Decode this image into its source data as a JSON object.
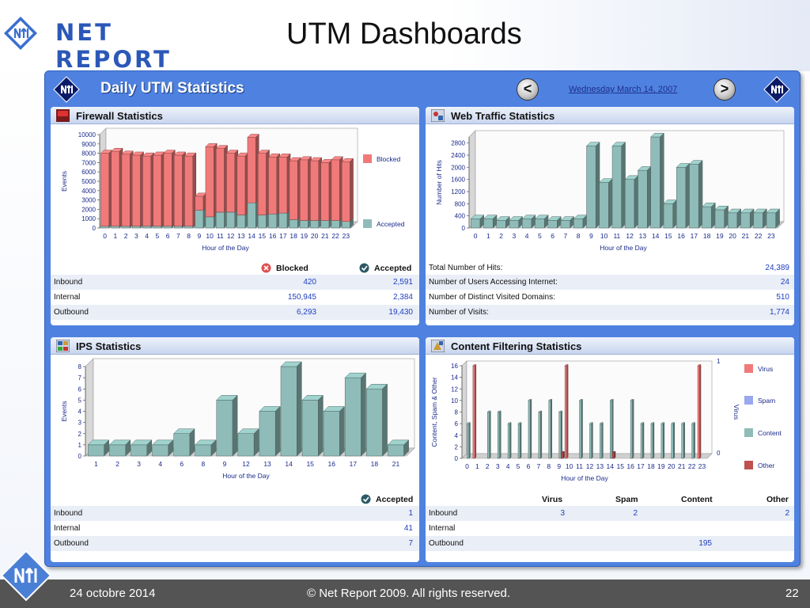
{
  "header": {
    "logo_text": "NET REPORT",
    "title": "UTM Dashboards"
  },
  "dashboard": {
    "title": "Daily UTM Statistics",
    "date": "Wednesday March 14, 2007",
    "prev_label": "<",
    "next_label": ">"
  },
  "firewall": {
    "title": "Firewall Statistics",
    "col_blocked": "Blocked",
    "col_accepted": "Accepted",
    "rows": [
      {
        "label": "Inbound",
        "blocked": "420",
        "accepted": "2,591"
      },
      {
        "label": "Internal",
        "blocked": "150,945",
        "accepted": "2,384"
      },
      {
        "label": "Outbound",
        "blocked": "6,293",
        "accepted": "19,430"
      }
    ]
  },
  "web": {
    "title": "Web Traffic Statistics",
    "rows": [
      {
        "label": "Total Number of Hits:",
        "value": "24,389"
      },
      {
        "label": "Number of Users Accessing Internet:",
        "value": "24"
      },
      {
        "label": "Number of Distinct Visited Domains:",
        "value": "510"
      },
      {
        "label": "Number of Visits:",
        "value": "1,774"
      }
    ]
  },
  "ips": {
    "title": "IPS Statistics",
    "col_accepted": "Accepted",
    "rows": [
      {
        "label": "Inbound",
        "value": "1"
      },
      {
        "label": "Internal",
        "value": "41"
      },
      {
        "label": "Outbound",
        "value": "7"
      }
    ]
  },
  "content": {
    "title": "Content Filtering Statistics",
    "col_virus": "Virus",
    "col_spam": "Spam",
    "col_content": "Content",
    "col_other": "Other",
    "rows": [
      {
        "label": "Inbound",
        "virus": "3",
        "spam": "2",
        "content": "",
        "other": "2"
      },
      {
        "label": "Internal",
        "virus": "",
        "spam": "",
        "content": "",
        "other": ""
      },
      {
        "label": "Outbound",
        "virus": "",
        "spam": "",
        "content": "195",
        "other": ""
      }
    ]
  },
  "footer": {
    "date": "24 octobre 2014",
    "copyright": "© Net Report 2009. All rights reserved.",
    "page": "22"
  },
  "chart_data": [
    {
      "id": "firewall",
      "type": "bar",
      "stacked": true,
      "categories": [
        "0",
        "1",
        "2",
        "3",
        "4",
        "5",
        "6",
        "7",
        "8",
        "9",
        "10",
        "11",
        "12",
        "13",
        "14",
        "15",
        "16",
        "17",
        "18",
        "19",
        "20",
        "21",
        "22",
        "23"
      ],
      "series": [
        {
          "name": "Accepted",
          "color": "#8fbcb8",
          "values": [
            200,
            200,
            200,
            200,
            200,
            200,
            200,
            200,
            200,
            1900,
            1200,
            1700,
            1700,
            1400,
            2700,
            1400,
            1500,
            1600,
            900,
            800,
            800,
            800,
            800,
            700
          ]
        },
        {
          "name": "Blocked",
          "color": "#f07a7a",
          "values": [
            7800,
            8000,
            7700,
            7600,
            7500,
            7600,
            7800,
            7600,
            7500,
            1500,
            7500,
            6800,
            6300,
            6300,
            7000,
            6600,
            6100,
            6000,
            6300,
            6500,
            6400,
            6200,
            6500,
            6400
          ]
        }
      ],
      "xlabel": "Hour of the Day",
      "ylabel": "Events",
      "ylim": [
        0,
        10000
      ],
      "yticks": [
        0,
        1000,
        2000,
        3000,
        4000,
        5000,
        6000,
        7000,
        8000,
        9000,
        10000
      ],
      "legend": "right"
    },
    {
      "id": "web",
      "type": "bar",
      "categories": [
        "0",
        "1",
        "2",
        "3",
        "4",
        "5",
        "6",
        "7",
        "8",
        "9",
        "10",
        "11",
        "12",
        "13",
        "14",
        "15",
        "16",
        "17",
        "18",
        "19",
        "20",
        "21",
        "22",
        "23"
      ],
      "series": [
        {
          "color": "#8fbcb8",
          "values": [
            300,
            300,
            250,
            250,
            300,
            300,
            250,
            250,
            300,
            2700,
            1500,
            2700,
            1600,
            1900,
            3000,
            800,
            2000,
            2100,
            700,
            600,
            500,
            500,
            500,
            500
          ]
        }
      ],
      "xlabel": "Hour of the Day",
      "ylabel": "Number of Hits",
      "ylim": [
        0,
        3000
      ],
      "yticks": [
        0,
        400,
        800,
        1200,
        1600,
        2000,
        2400,
        2800
      ]
    },
    {
      "id": "ips",
      "type": "bar",
      "categories": [
        "1",
        "2",
        "3",
        "4",
        "6",
        "8",
        "9",
        "12",
        "13",
        "14",
        "15",
        "16",
        "17",
        "18",
        "21"
      ],
      "series": [
        {
          "color": "#8fbcb8",
          "values": [
            1,
            1,
            1,
            1,
            2,
            1,
            5,
            2,
            4,
            8,
            5,
            4,
            7,
            6,
            1
          ]
        }
      ],
      "xlabel": "Hour of the Day",
      "ylabel": "Events",
      "ylim": [
        0,
        8
      ],
      "yticks": [
        0,
        1,
        2,
        3,
        4,
        5,
        6,
        7,
        8
      ]
    },
    {
      "id": "content",
      "type": "bar",
      "categories": [
        "0",
        "1",
        "2",
        "3",
        "4",
        "5",
        "6",
        "7",
        "8",
        "9",
        "10",
        "11",
        "12",
        "13",
        "14",
        "15",
        "16",
        "17",
        "18",
        "19",
        "20",
        "21",
        "22",
        "23"
      ],
      "series": [
        {
          "name": "Virus",
          "color": "#f07a7a",
          "axis": "right",
          "values": [
            0,
            1,
            0,
            0,
            0,
            0,
            0,
            0,
            0,
            0,
            1,
            0,
            0,
            0,
            0,
            0,
            0,
            0,
            0,
            0,
            0,
            0,
            0,
            1
          ]
        },
        {
          "name": "Spam",
          "color": "#9aa8ee",
          "values": [
            0,
            0,
            0,
            0,
            0,
            0,
            0,
            0,
            0,
            0,
            0,
            0,
            0,
            0,
            0,
            0,
            0,
            0,
            0,
            0,
            0,
            0,
            0,
            0
          ]
        },
        {
          "name": "Content",
          "color": "#8fbcb8",
          "values": [
            6,
            0,
            8,
            8,
            6,
            6,
            10,
            8,
            10,
            8,
            0,
            10,
            6,
            6,
            10,
            0,
            10,
            6,
            6,
            6,
            6,
            6,
            6,
            0
          ]
        },
        {
          "name": "Other",
          "color": "#c05050",
          "values": [
            0,
            0,
            0,
            0,
            0,
            0,
            0,
            0,
            0,
            1,
            0,
            0,
            0,
            0,
            1,
            0,
            0,
            0,
            0,
            0,
            0,
            0,
            0,
            0
          ]
        }
      ],
      "xlabel": "Hour of the Day",
      "ylabel": "Content, Spam & Other",
      "y2label": "Virus",
      "ylim": [
        0,
        16
      ],
      "y2lim": [
        0,
        1
      ],
      "yticks": [
        0,
        2,
        4,
        6,
        8,
        10,
        12,
        14,
        16
      ],
      "legend": "right"
    }
  ]
}
